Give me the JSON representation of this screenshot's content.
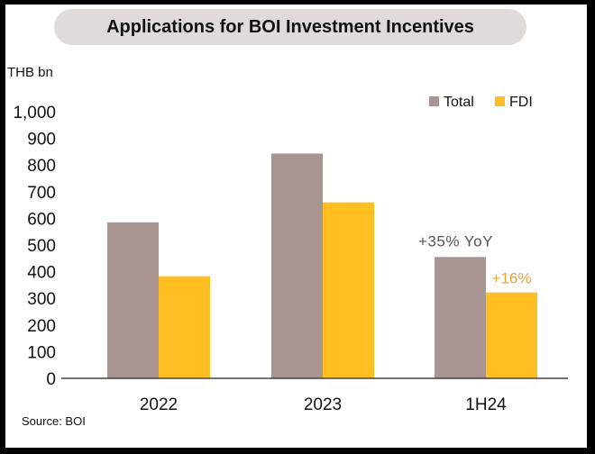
{
  "title": "Applications for BOI Investment Incentives",
  "unit_label": "THB bn",
  "source": "Source: BOI",
  "colors": {
    "total": "#a89491",
    "fdi": "#ffbe21",
    "title_bg": "#e0dad8",
    "ann_fdi": "#e8a43a",
    "ann_total": "#555555"
  },
  "chart_data": {
    "type": "bar",
    "title": "Applications for BOI Investment Incentives",
    "xlabel": "",
    "ylabel": "THB bn",
    "ylim": [
      0,
      1000
    ],
    "yticks": [
      0,
      100,
      200,
      300,
      400,
      500,
      600,
      700,
      800,
      900,
      1000
    ],
    "ytick_labels": [
      "0",
      "100",
      "200",
      "300",
      "400",
      "500",
      "600",
      "700",
      "800",
      "900",
      "1,000"
    ],
    "grid": false,
    "legend": "top-right",
    "categories": [
      "2022",
      "2023",
      "1H24"
    ],
    "series": [
      {
        "name": "Total",
        "color": "#a89491",
        "values": [
          585,
          843,
          455
        ]
      },
      {
        "name": "FDI",
        "color": "#ffbe21",
        "values": [
          383,
          660,
          322
        ]
      }
    ],
    "annotations": [
      {
        "category": "1H24",
        "series": "Total",
        "text": "+35% YoY"
      },
      {
        "category": "1H24",
        "series": "FDI",
        "text": "+16%"
      }
    ]
  }
}
